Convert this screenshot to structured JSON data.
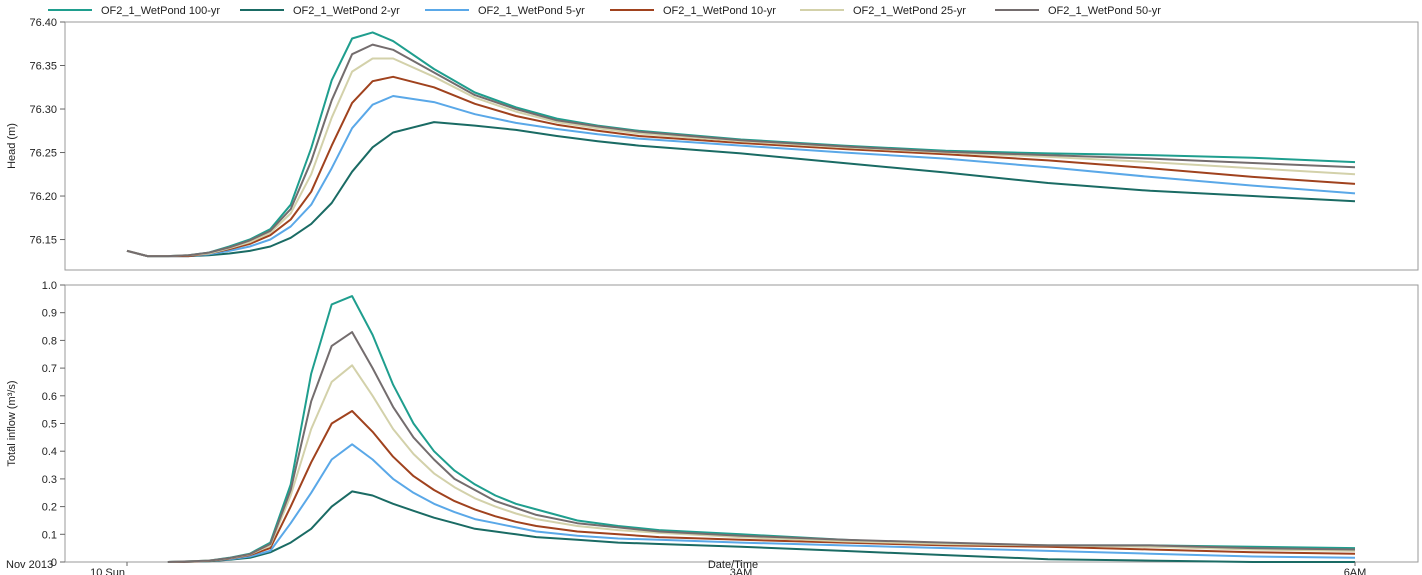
{
  "legend": [
    {
      "label": "OF2_1_WetPond 100-yr",
      "color": "#1f9e8e"
    },
    {
      "label": "OF2_1_WetPond 2-yr",
      "color": "#1a6b64"
    },
    {
      "label": "OF2_1_WetPond 5-yr",
      "color": "#5aa8e8"
    },
    {
      "label": "OF2_1_WetPond 10-yr",
      "color": "#a0421e"
    },
    {
      "label": "OF2_1_WetPond 25-yr",
      "color": "#d3d1aa"
    },
    {
      "label": "OF2_1_WetPond 50-yr",
      "color": "#746d6e"
    }
  ],
  "x_axis": {
    "label": "Date/Time",
    "date_label": "Nov 2013",
    "ticks": [
      "10 Sun",
      "3AM",
      "6AM"
    ]
  },
  "chart_data": [
    {
      "type": "line",
      "ylabel": "Head (m)",
      "ylim": [
        76.115,
        76.4
      ],
      "yticks": [
        "76.15",
        "76.20",
        "76.25",
        "76.30",
        "76.35",
        "76.40"
      ],
      "x": [
        0.0,
        0.1,
        0.2,
        0.3,
        0.4,
        0.5,
        0.6,
        0.7,
        0.8,
        0.9,
        1.0,
        1.1,
        1.2,
        1.3,
        1.5,
        1.7,
        1.9,
        2.1,
        2.3,
        2.5,
        3.0,
        3.5,
        4.0,
        4.5,
        5.0,
        5.5,
        6.0
      ],
      "series": [
        {
          "name": "OF2_1_WetPond 100-yr",
          "values": [
            76.137,
            76.131,
            76.131,
            76.132,
            76.135,
            76.142,
            76.15,
            76.162,
            76.19,
            76.255,
            76.333,
            76.381,
            76.388,
            76.378,
            76.346,
            76.319,
            76.302,
            76.289,
            76.281,
            76.275,
            76.265,
            76.258,
            76.252,
            76.249,
            76.247,
            76.244,
            76.239
          ]
        },
        {
          "name": "OF2_1_WetPond 2-yr",
          "values": [
            76.137,
            76.131,
            76.131,
            76.131,
            76.132,
            76.134,
            76.137,
            76.142,
            76.152,
            76.168,
            76.192,
            76.228,
            76.256,
            76.273,
            76.285,
            76.281,
            76.276,
            76.269,
            76.263,
            76.258,
            76.249,
            76.238,
            76.227,
            76.215,
            76.206,
            76.2,
            76.194
          ]
        },
        {
          "name": "OF2_1_WetPond 5-yr",
          "values": [
            76.137,
            76.131,
            76.131,
            76.131,
            76.133,
            76.137,
            76.142,
            76.15,
            76.165,
            76.19,
            76.232,
            76.278,
            76.305,
            76.315,
            76.308,
            76.294,
            76.284,
            76.277,
            76.271,
            76.266,
            76.258,
            76.25,
            76.243,
            76.233,
            76.222,
            76.212,
            76.203
          ]
        },
        {
          "name": "OF2_1_WetPond 10-yr",
          "values": [
            76.137,
            76.131,
            76.131,
            76.131,
            76.134,
            76.139,
            76.145,
            76.155,
            76.173,
            76.205,
            76.258,
            76.307,
            76.332,
            76.337,
            76.325,
            76.306,
            76.292,
            76.282,
            76.275,
            76.269,
            76.261,
            76.254,
            76.248,
            76.241,
            76.232,
            76.222,
            76.214
          ]
        },
        {
          "name": "OF2_1_WetPond 25-yr",
          "values": [
            76.137,
            76.131,
            76.131,
            76.132,
            76.134,
            76.14,
            76.147,
            76.158,
            76.18,
            76.225,
            76.29,
            76.343,
            76.358,
            76.358,
            76.337,
            76.313,
            76.297,
            76.285,
            76.278,
            76.272,
            76.263,
            76.256,
            76.25,
            76.245,
            76.239,
            76.232,
            76.225
          ]
        },
        {
          "name": "OF2_1_WetPond 50-yr",
          "values": [
            76.137,
            76.131,
            76.131,
            76.132,
            76.135,
            76.141,
            76.149,
            76.16,
            76.185,
            76.24,
            76.31,
            76.363,
            76.374,
            76.368,
            76.342,
            76.316,
            76.3,
            76.287,
            76.28,
            76.274,
            76.264,
            76.257,
            76.251,
            76.247,
            76.243,
            76.238,
            76.233
          ]
        }
      ]
    },
    {
      "type": "line",
      "ylabel": "Total inflow (m³/s)",
      "ylim": [
        0,
        1.0
      ],
      "yticks": [
        "0",
        "0.1",
        "0.2",
        "0.3",
        "0.4",
        "0.5",
        "0.6",
        "0.7",
        "0.8",
        "0.9",
        "1.0"
      ],
      "x": [
        0.2,
        0.3,
        0.4,
        0.5,
        0.6,
        0.7,
        0.8,
        0.9,
        1.0,
        1.1,
        1.2,
        1.3,
        1.4,
        1.5,
        1.6,
        1.7,
        1.8,
        1.9,
        2.0,
        2.2,
        2.4,
        2.6,
        3.0,
        3.5,
        4.0,
        4.5,
        5.0,
        5.5,
        6.0
      ],
      "series": [
        {
          "name": "OF2_1_WetPond 100-yr",
          "values": [
            0.0,
            0.002,
            0.005,
            0.015,
            0.03,
            0.07,
            0.28,
            0.68,
            0.93,
            0.96,
            0.82,
            0.64,
            0.5,
            0.4,
            0.33,
            0.28,
            0.24,
            0.21,
            0.19,
            0.15,
            0.13,
            0.115,
            0.1,
            0.08,
            0.065,
            0.06,
            0.06,
            0.055,
            0.05
          ]
        },
        {
          "name": "OF2_1_WetPond 2-yr",
          "values": [
            0.0,
            0.001,
            0.003,
            0.008,
            0.015,
            0.035,
            0.07,
            0.12,
            0.2,
            0.255,
            0.24,
            0.21,
            0.185,
            0.16,
            0.14,
            0.12,
            0.11,
            0.1,
            0.09,
            0.08,
            0.07,
            0.065,
            0.055,
            0.04,
            0.025,
            0.01,
            0.005,
            0.0,
            0.0
          ]
        },
        {
          "name": "OF2_1_WetPond 5-yr",
          "values": [
            0.0,
            0.001,
            0.004,
            0.01,
            0.02,
            0.04,
            0.14,
            0.25,
            0.37,
            0.425,
            0.37,
            0.3,
            0.25,
            0.21,
            0.18,
            0.155,
            0.14,
            0.125,
            0.11,
            0.095,
            0.085,
            0.08,
            0.07,
            0.06,
            0.05,
            0.04,
            0.03,
            0.02,
            0.015
          ]
        },
        {
          "name": "OF2_1_WetPond 10-yr",
          "values": [
            0.0,
            0.001,
            0.004,
            0.012,
            0.025,
            0.05,
            0.2,
            0.36,
            0.5,
            0.545,
            0.47,
            0.38,
            0.31,
            0.26,
            0.22,
            0.19,
            0.165,
            0.145,
            0.13,
            0.11,
            0.1,
            0.09,
            0.08,
            0.07,
            0.06,
            0.055,
            0.045,
            0.035,
            0.03
          ]
        },
        {
          "name": "OF2_1_WetPond 25-yr",
          "values": [
            0.0,
            0.002,
            0.005,
            0.013,
            0.027,
            0.06,
            0.24,
            0.48,
            0.65,
            0.71,
            0.6,
            0.48,
            0.39,
            0.32,
            0.27,
            0.23,
            0.2,
            0.175,
            0.155,
            0.13,
            0.115,
            0.105,
            0.09,
            0.075,
            0.065,
            0.06,
            0.055,
            0.045,
            0.04
          ]
        },
        {
          "name": "OF2_1_WetPond 50-yr",
          "values": [
            0.0,
            0.002,
            0.005,
            0.014,
            0.028,
            0.065,
            0.26,
            0.58,
            0.78,
            0.83,
            0.7,
            0.56,
            0.45,
            0.37,
            0.3,
            0.26,
            0.22,
            0.195,
            0.17,
            0.14,
            0.125,
            0.11,
            0.095,
            0.08,
            0.07,
            0.06,
            0.06,
            0.05,
            0.045
          ]
        }
      ]
    }
  ]
}
